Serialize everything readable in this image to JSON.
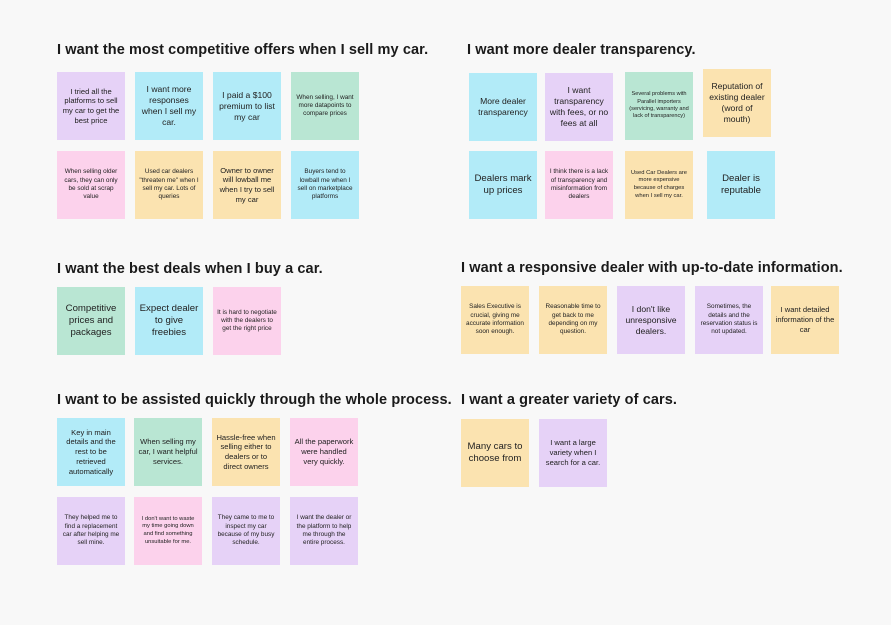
{
  "sections": {
    "sell": {
      "title": "I want the most competitive offers when I sell my car.",
      "notes": [
        "I tried all the platforms to sell my car to get the best price",
        "I want more responses when I sell my car.",
        "I paid a $100 premium to list my car",
        "When selling, I want more datapoints to compare prices",
        "When selling older cars, they can only be sold at scrap value",
        "Used car dealers \"threaten me\" when I sell my car. Lots of queries",
        "Owner to owner will lowball me when I try to sell my car",
        "Buyers tend to lowball me when I sell on marketplace platforms"
      ]
    },
    "transparency": {
      "title": "I want more dealer transparency.",
      "notes": [
        "More dealer transparency",
        "I want transparency with fees, or no fees at all",
        "Several problems with Parallel importers (servicing, warranty and lack of transparency)",
        "Reputation of existing dealer (word of mouth)",
        "Dealers mark up prices",
        "I think there is a lack of transparency and misinformation from dealers",
        "Used Car Dealers are more expensive because of charges when I sell my car.",
        "Dealer is reputable"
      ]
    },
    "buy": {
      "title": "I want the best deals when I buy a car.",
      "notes": [
        "Competitive prices and packages",
        "Expect dealer to give freebies",
        "It is hard to negotiate with the dealers to get the right price"
      ]
    },
    "responsive": {
      "title": "I want a responsive dealer with up-to-date information.",
      "notes": [
        "Sales Executive is crucial, giving me accurate information soon enough.",
        "Reasonable time to get back to me depending on my question.",
        "I don't like unresponsive dealers.",
        "Sometimes, the details and the reservation status is not updated.",
        "I want detailed information of the car"
      ]
    },
    "assisted": {
      "title": "I want to be assisted quickly through the whole process.",
      "notes": [
        "Key in main details and the rest to be retrieved automatically",
        "When selling my car, I want helpful services.",
        "Hassle-free when selling either to dealers or to direct owners",
        "All the paperwork were handled very quickly.",
        "They helped me to find a replacement car after helping me sell mine.",
        "I don't want to waste my time going down and find something unsuitable for me.",
        "They came to me to inspect my car because of my busy schedule.",
        "I want the dealer or the platform to help me through the entire process."
      ]
    },
    "variety": {
      "title": "I want a greater variety of cars.",
      "notes": [
        "Many cars to choose from",
        "I want a large variety when I search for a car."
      ]
    }
  },
  "colors": {
    "purple": "#e6d2f7",
    "blue": "#b2ebf8",
    "green": "#b9e6d3",
    "yellow": "#fbe3b0",
    "pink": "#fcd2ec",
    "background": "#f8f8f8"
  }
}
